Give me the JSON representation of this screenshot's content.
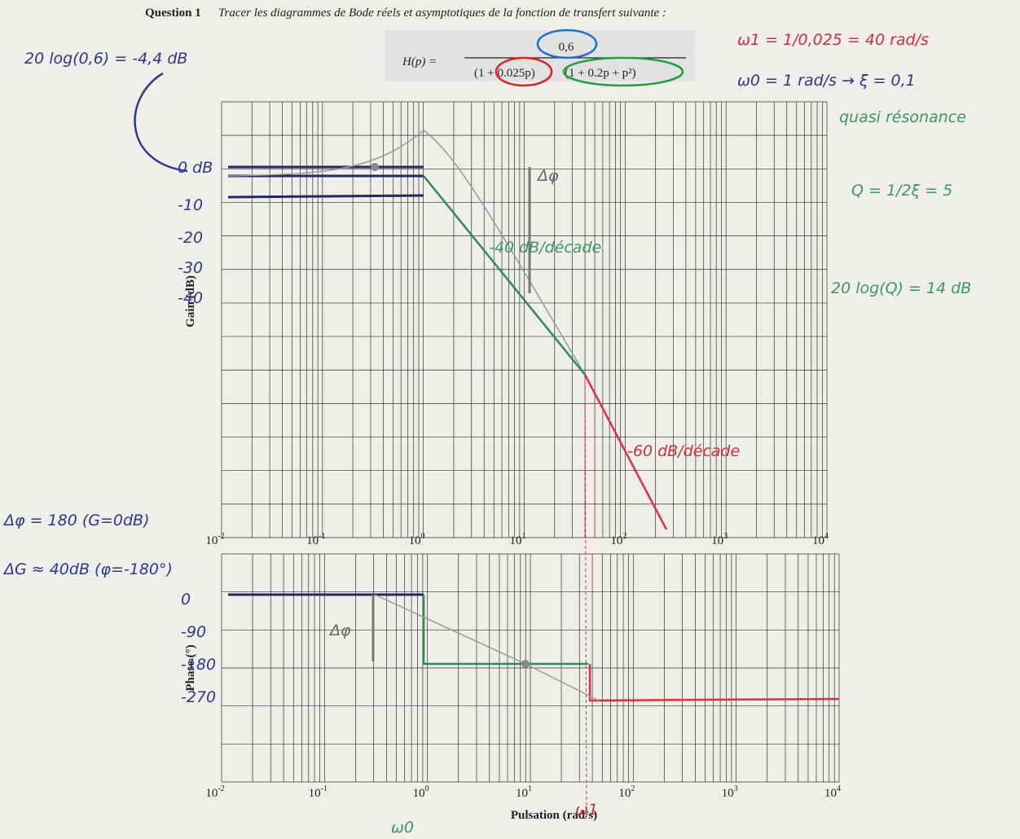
{
  "question": {
    "label": "Question 1",
    "text": "Tracer les diagrammes de Bode réels et asymptotiques de la fonction de transfert suivante :"
  },
  "formula": {
    "lhs": "H(p) =",
    "numerator": "0,6",
    "denominator_1": "(1 + 0.025p)",
    "denominator_2": "(1 + 0.2p + p²)"
  },
  "gain_plot": {
    "y_label": "Gain (dB)",
    "x_ticks": [
      {
        "base": "10",
        "exp": "-2"
      },
      {
        "base": "10",
        "exp": "-1"
      },
      {
        "base": "10",
        "exp": "0"
      },
      {
        "base": "10",
        "exp": "1"
      },
      {
        "base": "10",
        "exp": "2"
      },
      {
        "base": "10",
        "exp": "3"
      },
      {
        "base": "10",
        "exp": "4"
      }
    ],
    "hand_y_labels": [
      "0 dB",
      "-10",
      "-20",
      "-30",
      "-40"
    ]
  },
  "phase_plot": {
    "y_label": "Phase (°)",
    "x_label": "Pulsation (rad/s)",
    "x_ticks": [
      {
        "base": "10",
        "exp": "-2"
      },
      {
        "base": "10",
        "exp": "-1"
      },
      {
        "base": "10",
        "exp": "0"
      },
      {
        "base": "10",
        "exp": "1"
      },
      {
        "base": "10",
        "exp": "2"
      },
      {
        "base": "10",
        "exp": "3"
      },
      {
        "base": "10",
        "exp": "4"
      }
    ],
    "hand_y_labels": [
      "0",
      "-90",
      "-180",
      "-270"
    ]
  },
  "annotations": {
    "gain_static": "20 log(0,6) = -4,4 dB",
    "omega1": "ω1 = 1/0,025 = 40 rad/s",
    "omega0": "ω0 = 1 rad/s → ξ = 0,1",
    "resonance": "quasi résonance",
    "q_factor": "Q = 1/2ξ = 5",
    "q_db": "20 log(Q) = 14 dB",
    "slope_40": "-40 dB/décade",
    "slope_60": "-60 dB/décade",
    "phase_margin": "Δφ = 180 (G=0dB)",
    "gain_margin": "ΔG ≈ 40dB (φ=-180°)",
    "arrow_gain": "Δφ",
    "arrow_phase": "Δφ",
    "w0_mark": "ω0",
    "w1_mark": "ω1"
  }
}
